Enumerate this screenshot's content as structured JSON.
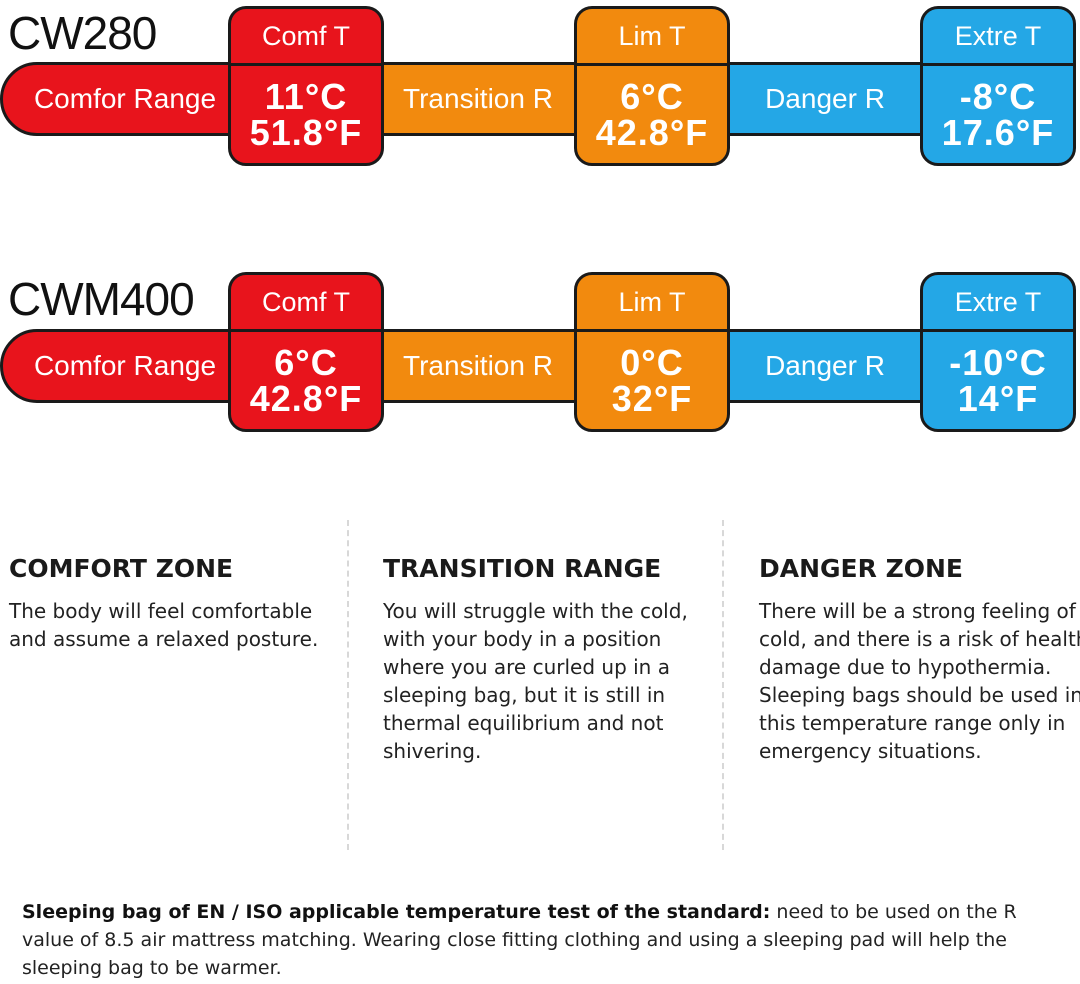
{
  "colors": {
    "comfort": "#e8141c",
    "transition": "#f28a0e",
    "danger": "#24a7e6"
  },
  "models": [
    {
      "name": "CW280",
      "range_labels": [
        "Comfor Range",
        "Transition R",
        "Danger R"
      ],
      "markers": [
        {
          "label": "Comf T",
          "celsius": "11°C",
          "fahrenheit": "51.8°F"
        },
        {
          "label": "Lim T",
          "celsius": "6°C",
          "fahrenheit": "42.8°F"
        },
        {
          "label": "Extre T",
          "celsius": "-8°C",
          "fahrenheit": "17.6°F"
        }
      ]
    },
    {
      "name": "CWM400",
      "range_labels": [
        "Comfor Range",
        "Transition R",
        "Danger R"
      ],
      "markers": [
        {
          "label": "Comf T",
          "celsius": "6°C",
          "fahrenheit": "42.8°F"
        },
        {
          "label": "Lim T",
          "celsius": "0°C",
          "fahrenheit": "32°F"
        },
        {
          "label": "Extre T",
          "celsius": "-10°C",
          "fahrenheit": "14°F"
        }
      ]
    }
  ],
  "zones": [
    {
      "title": "COMFORT ZONE",
      "text": "The body will feel comfortable and assume a relaxed posture."
    },
    {
      "title": "TRANSITION RANGE",
      "text": "You will struggle with the cold, with your body in a position where you are curled up in a sleeping bag, but it is still in thermal equilibrium and not shivering."
    },
    {
      "title": "DANGER ZONE",
      "text": "There will be a strong feeling of cold, and there is a risk of health damage due to hypothermia. Sleeping bags should be used in this temperature range only in emergency situations."
    }
  ],
  "footnote": {
    "bold": "Sleeping bag of EN / ISO applicable temperature test of the standard:",
    "text": " need to be used on the R value of 8.5 air mattress matching. Wearing close fitting clothing and using a sleeping pad will help the sleeping bag to be warmer."
  }
}
